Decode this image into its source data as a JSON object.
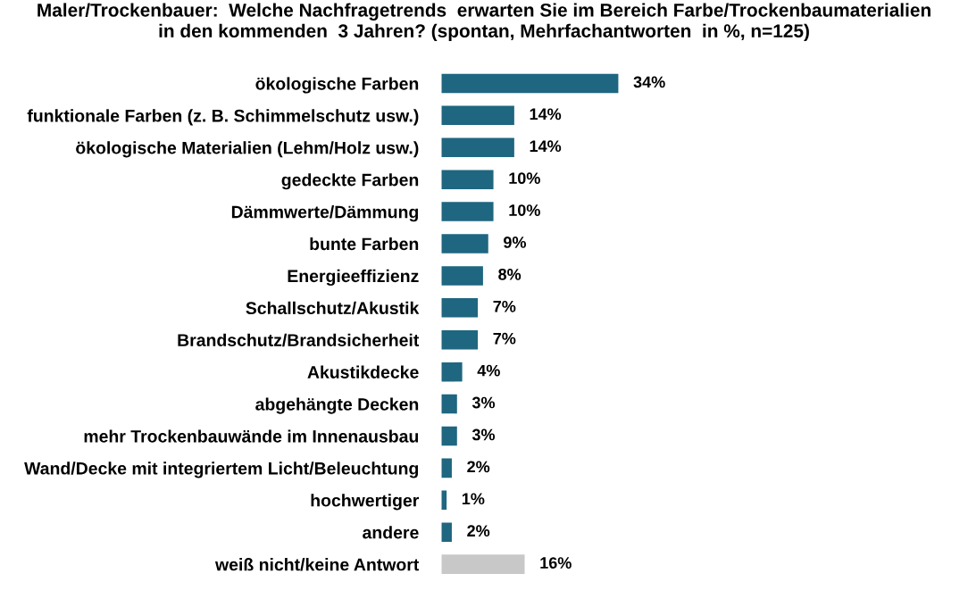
{
  "chart_data": {
    "type": "bar",
    "orientation": "horizontal",
    "title": "Maler/Trockenbauer:  Welche Nachfragetrends  erwarten Sie im Bereich Farbe/Trockenbaumaterialien\nin den kommenden  3 Jahren? (spontan, Mehrfachantworten  in %, n=125)",
    "categories": [
      "ökologische Farben",
      "funktionale Farben (z. B. Schimmelschutz usw.)",
      "ökologische Materialien (Lehm/Holz usw.)",
      "gedeckte Farben",
      "Dämmwerte/Dämmung",
      "bunte Farben",
      "Energieeffizienz",
      "Schallschutz/Akustik",
      "Brandschutz/Brandsicherheit",
      "Akustikdecke",
      "abgehängte Decken",
      "mehr Trockenbauwände im Innenausbau",
      "Wand/Decke mit integriertem Licht/Beleuchtung",
      "hochwertiger",
      "andere",
      "weiß nicht/keine Antwort"
    ],
    "values": [
      34,
      14,
      14,
      10,
      10,
      9,
      8,
      7,
      7,
      4,
      3,
      3,
      2,
      1,
      2,
      16
    ],
    "colors": [
      "#1f6680",
      "#1f6680",
      "#1f6680",
      "#1f6680",
      "#1f6680",
      "#1f6680",
      "#1f6680",
      "#1f6680",
      "#1f6680",
      "#1f6680",
      "#1f6680",
      "#1f6680",
      "#1f6680",
      "#1f6680",
      "#1f6680",
      "#c8c8c8"
    ],
    "value_labels": [
      "34%",
      "14%",
      "14%",
      "10%",
      "10%",
      "9%",
      "8%",
      "7%",
      "7%",
      "4%",
      "3%",
      "3%",
      "2%",
      "1%",
      "2%",
      "16%"
    ]
  }
}
